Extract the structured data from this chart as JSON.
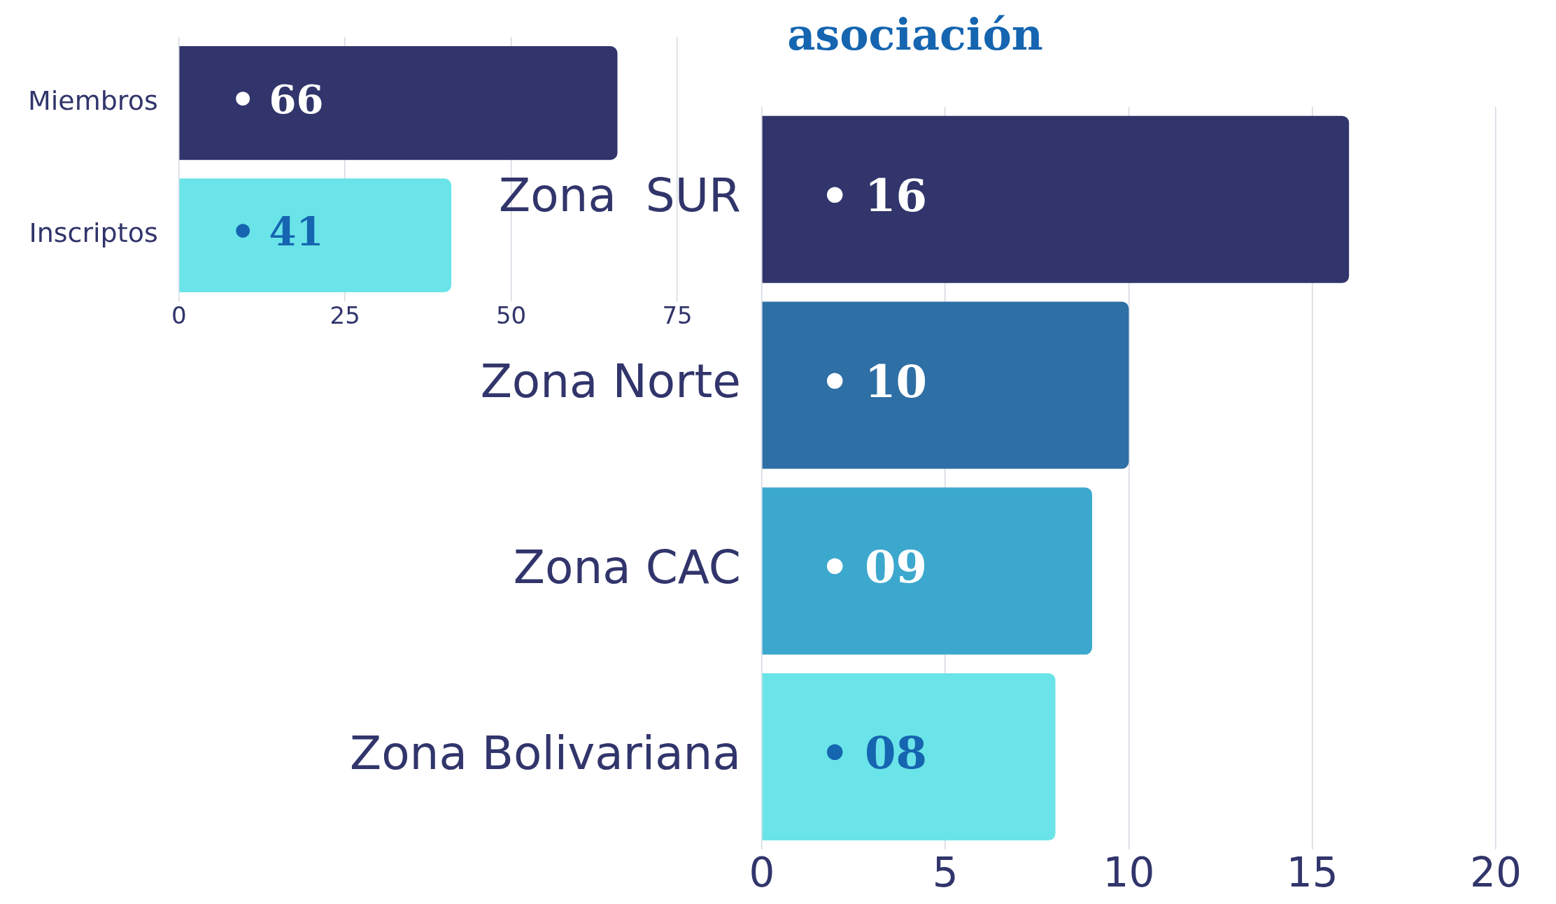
{
  "chart_data": [
    {
      "type": "bar",
      "orientation": "horizontal",
      "categories": [
        "Miembros",
        "Inscriptos"
      ],
      "values": [
        66,
        41
      ],
      "colors": [
        "#31356b",
        "#6ae4e8"
      ],
      "xlim": [
        0,
        75
      ],
      "xticks": [
        0,
        25,
        50,
        75
      ],
      "grid": "x",
      "value_labels": [
        "• 66",
        "• 41"
      ]
    },
    {
      "type": "bar",
      "orientation": "horizontal",
      "title": "asociación",
      "categories": [
        "Zona  SUR",
        "Zona Norte",
        "Zona CAC",
        "Zona Bolivariana"
      ],
      "values": [
        16,
        10,
        9,
        8
      ],
      "colors": [
        "#31356b",
        "#2e6fa5",
        "#3ca8ce",
        "#6ae4e8"
      ],
      "xlim": [
        0,
        20
      ],
      "xticks": [
        0,
        5,
        10,
        15,
        20
      ],
      "grid": "x",
      "value_labels": [
        "• 16",
        "• 10",
        "• 09",
        "• 08"
      ]
    }
  ]
}
